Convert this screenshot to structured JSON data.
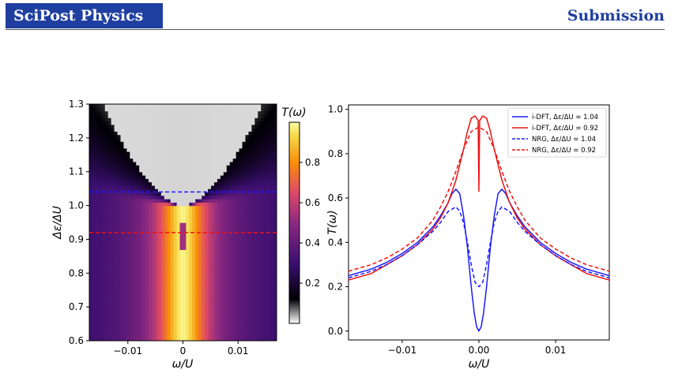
{
  "header": {
    "journal": "SciPost Physics",
    "section": "Submission"
  },
  "colors": {
    "brand": "#1f3fa0",
    "blue": "#1a1aff",
    "red": "#ee1111"
  },
  "chart_data": [
    {
      "type": "heatmap",
      "xlabel": "ω/U",
      "ylabel": "Δε/ΔU",
      "xlim": [
        -0.017,
        0.017
      ],
      "ylim": [
        0.6,
        1.3
      ],
      "xticks": [
        -0.01,
        0,
        0.01
      ],
      "xtick_labels": [
        "−0.01",
        "0",
        "0.01"
      ],
      "yticks": [
        0.6,
        0.7,
        0.8,
        0.9,
        1.0,
        1.1,
        1.2,
        1.3
      ],
      "ytick_labels": [
        "0.6",
        "0.7",
        "0.8",
        "0.9",
        "1.0",
        "1.1",
        "1.2",
        "1.3"
      ],
      "colormap": "inferno_r",
      "colorbar": {
        "label": "T(ω)",
        "range": [
          0,
          1
        ],
        "ticks": [
          0.2,
          0.4,
          0.6,
          0.8
        ],
        "tick_labels": [
          "0.2",
          "0.4",
          "0.6",
          "0.8"
        ]
      },
      "hlines": [
        {
          "y": 1.04,
          "color": "#1a1aff",
          "style": "dashed"
        },
        {
          "y": 0.92,
          "color": "#ee1111",
          "style": "dashed"
        }
      ]
    },
    {
      "type": "line",
      "xlabel": "ω/U",
      "ylabel": "T(ω)",
      "xlim": [
        -0.017,
        0.017
      ],
      "ylim": [
        -0.04,
        1.02
      ],
      "xticks": [
        -0.01,
        0,
        0.01
      ],
      "xtick_labels": [
        "−0.01",
        "0.00",
        "0.01"
      ],
      "yticks": [
        0,
        0.2,
        0.4,
        0.6,
        0.8,
        1.0
      ],
      "ytick_labels": [
        "0.0",
        "0.2",
        "0.4",
        "0.6",
        "0.8",
        "1.0"
      ],
      "legend_position": "top-right",
      "series": [
        {
          "name": "i-DFT, Δε/ΔU = 1.04",
          "color": "#1a1aff",
          "style": "solid",
          "x": [
            -0.017,
            -0.014,
            -0.012,
            -0.01,
            -0.008,
            -0.006,
            -0.005,
            -0.004,
            -0.0035,
            -0.003,
            -0.0025,
            -0.002,
            -0.0015,
            -0.001,
            -0.0006,
            -0.0003,
            0,
            0.0003,
            0.0006,
            0.001,
            0.0015,
            0.002,
            0.0025,
            0.003,
            0.0035,
            0.004,
            0.005,
            0.006,
            0.008,
            0.01,
            0.012,
            0.014,
            0.017
          ],
          "y": [
            0.25,
            0.28,
            0.31,
            0.35,
            0.4,
            0.47,
            0.52,
            0.58,
            0.62,
            0.64,
            0.62,
            0.52,
            0.38,
            0.2,
            0.08,
            0.02,
            0.0,
            0.02,
            0.08,
            0.2,
            0.38,
            0.52,
            0.62,
            0.64,
            0.62,
            0.58,
            0.52,
            0.47,
            0.4,
            0.35,
            0.31,
            0.28,
            0.25
          ]
        },
        {
          "name": "i-DFT, Δε/ΔU = 0.92",
          "color": "#ee1111",
          "style": "solid",
          "x": [
            -0.017,
            -0.014,
            -0.012,
            -0.01,
            -0.008,
            -0.006,
            -0.005,
            -0.004,
            -0.003,
            -0.002,
            -0.0015,
            -0.001,
            -0.0005,
            -0.0001,
            0,
            0.0001,
            0.0005,
            0.001,
            0.0015,
            0.002,
            0.003,
            0.004,
            0.005,
            0.006,
            0.008,
            0.01,
            0.012,
            0.014,
            0.017
          ],
          "y": [
            0.23,
            0.26,
            0.3,
            0.34,
            0.39,
            0.46,
            0.51,
            0.58,
            0.68,
            0.82,
            0.9,
            0.96,
            0.97,
            0.95,
            0.63,
            0.95,
            0.97,
            0.96,
            0.9,
            0.82,
            0.68,
            0.58,
            0.51,
            0.46,
            0.39,
            0.34,
            0.3,
            0.26,
            0.23
          ]
        },
        {
          "name": "NRG, Δε/ΔU = 1.04",
          "color": "#1a1aff",
          "style": "dashed",
          "x": [
            -0.017,
            -0.014,
            -0.012,
            -0.01,
            -0.008,
            -0.006,
            -0.005,
            -0.004,
            -0.003,
            -0.0025,
            -0.002,
            -0.0015,
            -0.001,
            -0.0005,
            0,
            0.0005,
            0.001,
            0.0015,
            0.002,
            0.0025,
            0.003,
            0.004,
            0.005,
            0.006,
            0.008,
            0.01,
            0.012,
            0.014,
            0.017
          ],
          "y": [
            0.24,
            0.27,
            0.3,
            0.34,
            0.39,
            0.45,
            0.49,
            0.54,
            0.56,
            0.54,
            0.49,
            0.4,
            0.3,
            0.22,
            0.2,
            0.22,
            0.3,
            0.4,
            0.49,
            0.54,
            0.56,
            0.54,
            0.49,
            0.45,
            0.39,
            0.34,
            0.3,
            0.27,
            0.24
          ]
        },
        {
          "name": "NRG, Δε/ΔU = 0.92",
          "color": "#ee1111",
          "style": "dashed",
          "x": [
            -0.017,
            -0.014,
            -0.012,
            -0.01,
            -0.008,
            -0.006,
            -0.005,
            -0.004,
            -0.003,
            -0.002,
            -0.001,
            0,
            0.001,
            0.002,
            0.003,
            0.004,
            0.005,
            0.006,
            0.008,
            0.01,
            0.012,
            0.014,
            0.017
          ],
          "y": [
            0.27,
            0.3,
            0.33,
            0.37,
            0.42,
            0.5,
            0.56,
            0.63,
            0.72,
            0.82,
            0.9,
            0.92,
            0.9,
            0.82,
            0.72,
            0.63,
            0.56,
            0.5,
            0.42,
            0.37,
            0.33,
            0.3,
            0.27
          ]
        }
      ]
    }
  ]
}
